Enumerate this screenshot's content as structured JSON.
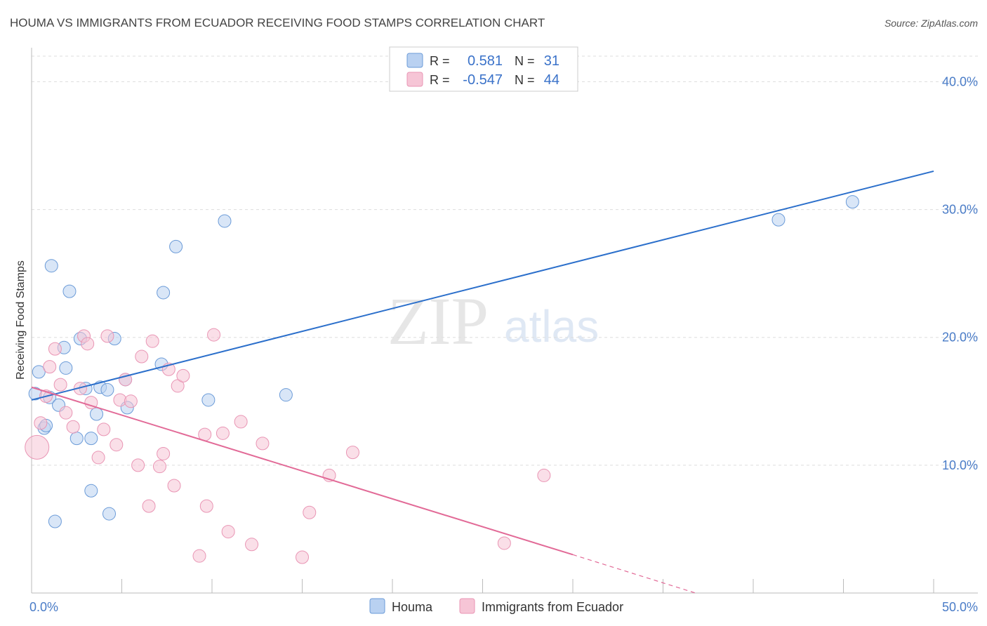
{
  "chart_data": {
    "type": "scatter",
    "title": "HOUMA VS IMMIGRANTS FROM ECUADOR RECEIVING FOOD STAMPS CORRELATION CHART",
    "source": "Source: ZipAtlas.com",
    "ylabel": "Receiving Food Stamps",
    "xlim": [
      0,
      50
    ],
    "ylim": [
      0,
      42
    ],
    "y_ticks": [
      {
        "value": 10,
        "label": "10.0%"
      },
      {
        "value": 20,
        "label": "20.0%"
      },
      {
        "value": 30,
        "label": "30.0%"
      },
      {
        "value": 40,
        "label": "40.0%"
      }
    ],
    "x_tick_labels": {
      "min": "0.0%",
      "max": "50.0%"
    },
    "grid": true,
    "legend": {
      "placement": "top-center",
      "rows": [
        {
          "r_label": "R =",
          "r_value": "0.581",
          "n_label": "N =",
          "n_value": "31"
        },
        {
          "r_label": "R =",
          "r_value": "-0.547",
          "n_label": "N =",
          "n_value": "44"
        }
      ]
    },
    "series": [
      {
        "name": "Houma",
        "color": "#6b9bd8",
        "fill": "#b9d1f1",
        "line_color": "#2b6fcb",
        "trend": {
          "x": [
            0,
            50
          ],
          "y": [
            15.1,
            33.0
          ]
        },
        "points": [
          [
            0.2,
            15.6
          ],
          [
            0.4,
            17.3
          ],
          [
            0.7,
            12.9
          ],
          [
            0.8,
            13.1
          ],
          [
            1.0,
            15.3
          ],
          [
            1.1,
            25.6
          ],
          [
            1.3,
            5.6
          ],
          [
            1.5,
            14.7
          ],
          [
            1.8,
            19.2
          ],
          [
            1.9,
            17.6
          ],
          [
            2.1,
            23.6
          ],
          [
            2.5,
            12.1
          ],
          [
            2.7,
            19.9
          ],
          [
            3.0,
            16.0
          ],
          [
            3.3,
            8.0
          ],
          [
            3.3,
            12.1
          ],
          [
            3.6,
            14.0
          ],
          [
            3.8,
            16.1
          ],
          [
            4.2,
            15.9
          ],
          [
            4.3,
            6.2
          ],
          [
            4.6,
            19.9
          ],
          [
            5.2,
            16.7
          ],
          [
            5.3,
            14.5
          ],
          [
            7.2,
            17.9
          ],
          [
            7.3,
            23.5
          ],
          [
            8.0,
            27.1
          ],
          [
            9.8,
            15.1
          ],
          [
            10.7,
            29.1
          ],
          [
            14.1,
            15.5
          ],
          [
            41.4,
            29.2
          ],
          [
            45.5,
            30.6
          ]
        ]
      },
      {
        "name": "Immigrants from Ecuador",
        "color": "#e995b4",
        "fill": "#f6c5d6",
        "line_color": "#e26a97",
        "trend": {
          "x": [
            0,
            30
          ],
          "y": [
            16.1,
            3.0
          ]
        },
        "trend_dashed": {
          "x": [
            30,
            36.8
          ],
          "y": [
            3.0,
            0.0
          ]
        },
        "points": [
          [
            0.3,
            11.4
          ],
          [
            0.5,
            13.3
          ],
          [
            0.8,
            15.4
          ],
          [
            1.0,
            17.7
          ],
          [
            1.3,
            19.1
          ],
          [
            1.6,
            16.3
          ],
          [
            1.9,
            14.1
          ],
          [
            2.3,
            13.0
          ],
          [
            2.7,
            16.0
          ],
          [
            2.9,
            20.1
          ],
          [
            3.1,
            19.5
          ],
          [
            3.3,
            14.9
          ],
          [
            3.7,
            10.6
          ],
          [
            4.0,
            12.8
          ],
          [
            4.2,
            20.1
          ],
          [
            4.7,
            11.6
          ],
          [
            4.9,
            15.1
          ],
          [
            5.2,
            16.7
          ],
          [
            5.5,
            15.0
          ],
          [
            5.9,
            10.0
          ],
          [
            6.1,
            18.5
          ],
          [
            6.5,
            6.8
          ],
          [
            6.7,
            19.7
          ],
          [
            7.1,
            9.9
          ],
          [
            7.3,
            10.9
          ],
          [
            7.6,
            17.5
          ],
          [
            7.9,
            8.4
          ],
          [
            8.1,
            16.2
          ],
          [
            8.4,
            17.0
          ],
          [
            9.3,
            2.9
          ],
          [
            9.6,
            12.4
          ],
          [
            9.7,
            6.8
          ],
          [
            10.1,
            20.2
          ],
          [
            10.6,
            12.5
          ],
          [
            10.9,
            4.8
          ],
          [
            11.6,
            13.4
          ],
          [
            12.2,
            3.8
          ],
          [
            12.8,
            11.7
          ],
          [
            15.0,
            2.8
          ],
          [
            15.4,
            6.3
          ],
          [
            16.5,
            9.2
          ],
          [
            17.8,
            11.0
          ],
          [
            26.2,
            3.9
          ],
          [
            28.4,
            9.2
          ]
        ]
      }
    ]
  }
}
